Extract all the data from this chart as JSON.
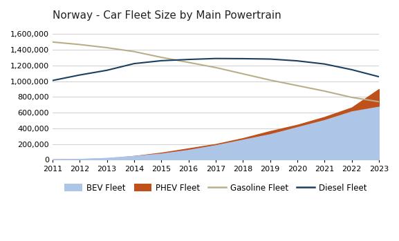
{
  "title": "Norway - Car Fleet Size by Main Powertrain",
  "years": [
    2011,
    2012,
    2013,
    2014,
    2015,
    2016,
    2017,
    2018,
    2019,
    2020,
    2021,
    2022,
    2023
  ],
  "bev": [
    5000,
    9000,
    22000,
    48000,
    78000,
    125000,
    185000,
    255000,
    325000,
    415000,
    505000,
    615000,
    675000
  ],
  "phev": [
    2000,
    4000,
    12000,
    48000,
    90000,
    145000,
    200000,
    275000,
    365000,
    445000,
    545000,
    665000,
    900000
  ],
  "gasoline": [
    1500000,
    1468000,
    1428000,
    1378000,
    1305000,
    1240000,
    1175000,
    1095000,
    1015000,
    945000,
    875000,
    795000,
    740000
  ],
  "diesel": [
    1010000,
    1080000,
    1140000,
    1225000,
    1262000,
    1278000,
    1290000,
    1288000,
    1283000,
    1260000,
    1220000,
    1148000,
    1058000
  ],
  "bev_color": "#adc6e8",
  "phev_color": "#c0501a",
  "gasoline_color": "#b8ae88",
  "diesel_color": "#1a3f5f",
  "ylim": [
    0,
    1700000
  ],
  "yticks": [
    0,
    200000,
    400000,
    600000,
    800000,
    1000000,
    1200000,
    1400000,
    1600000
  ],
  "legend_labels": [
    "BEV Fleet",
    "PHEV Fleet",
    "Gasoline Fleet",
    "Diesel Fleet"
  ],
  "background_color": "#ffffff",
  "grid_color": "#d0d0d0",
  "title_fontsize": 11,
  "tick_fontsize": 8,
  "legend_fontsize": 8.5
}
